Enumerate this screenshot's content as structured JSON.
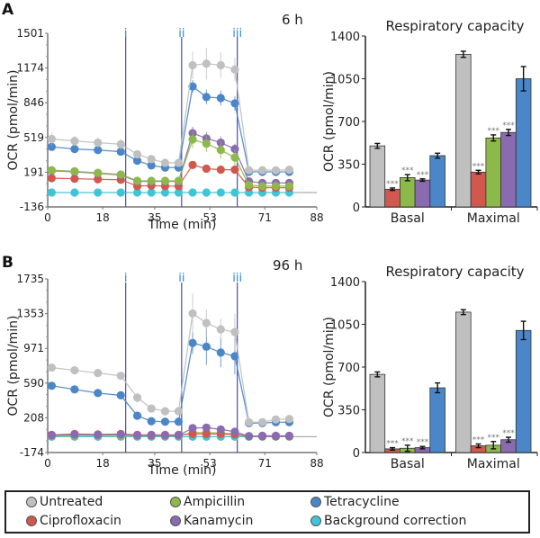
{
  "chart_data": [
    {
      "type": "line",
      "panel": "A",
      "timepoint_label": "6 h",
      "xlabel": "Time (min)",
      "ylabel": "OCR (pmol/min)",
      "xlim": [
        0,
        88
      ],
      "ylim": [
        -136,
        1501
      ],
      "xticks": [
        "0",
        "18",
        "35",
        "53",
        "71",
        "88"
      ],
      "xtick_values": [
        0,
        18,
        35,
        53,
        71,
        88
      ],
      "yticks": [
        "1501",
        "1174",
        "846",
        "519",
        "191",
        "-136"
      ],
      "ytick_values": [
        1501,
        1174,
        846,
        519,
        191,
        -136
      ],
      "injections": [
        {
          "label": "i",
          "x": 25.5
        },
        {
          "label": "ii",
          "x": 43.8
        },
        {
          "label": "iii",
          "x": 62.0
        }
      ],
      "x": [
        1.3,
        8.8,
        16.4,
        23.9,
        29.3,
        33.9,
        38.4,
        42.8,
        47.4,
        51.9,
        56.6,
        61.2,
        65.8,
        70.2,
        74.6,
        79.0
      ],
      "series": [
        {
          "name": "Untreated",
          "color": "#c0c0c0",
          "values": [
            505,
            485,
            470,
            455,
            360,
            315,
            280,
            280,
            1200,
            1215,
            1200,
            1160,
            210,
            210,
            210,
            215
          ],
          "err": [
            60,
            50,
            50,
            50,
            40,
            40,
            30,
            30,
            130,
            150,
            120,
            110,
            30,
            30,
            30,
            30
          ]
        },
        {
          "name": "Tetracycline",
          "color": "#4a86c8",
          "values": [
            430,
            410,
            400,
            385,
            300,
            255,
            235,
            235,
            1000,
            900,
            890,
            840,
            195,
            195,
            195,
            195
          ],
          "err": [
            30,
            30,
            30,
            30,
            30,
            30,
            30,
            30,
            60,
            70,
            70,
            70,
            20,
            20,
            20,
            20
          ]
        },
        {
          "name": "Ampicillin",
          "color": "#8db84a",
          "values": [
            210,
            200,
            185,
            170,
            110,
            110,
            110,
            110,
            500,
            460,
            400,
            330,
            70,
            60,
            60,
            60
          ],
          "err": [
            20,
            20,
            20,
            20,
            20,
            20,
            20,
            20,
            80,
            80,
            80,
            80,
            20,
            20,
            20,
            20
          ]
        },
        {
          "name": "Kanamycin",
          "color": "#8b6bb0",
          "values": [
            205,
            195,
            180,
            165,
            105,
            105,
            105,
            105,
            560,
            510,
            470,
            410,
            105,
            90,
            90,
            90
          ],
          "err": [
            20,
            20,
            20,
            20,
            20,
            20,
            20,
            20,
            60,
            60,
            60,
            50,
            20,
            20,
            20,
            20
          ]
        },
        {
          "name": "Ciprofloxacin",
          "color": "#d0584e",
          "values": [
            135,
            130,
            125,
            120,
            60,
            65,
            60,
            60,
            260,
            225,
            215,
            215,
            50,
            45,
            45,
            45
          ],
          "err": [
            15,
            15,
            15,
            15,
            15,
            15,
            15,
            15,
            20,
            20,
            20,
            20,
            10,
            10,
            10,
            10
          ]
        },
        {
          "name": "Background correction",
          "color": "#3ec6d6",
          "values": [
            0,
            0,
            0,
            0,
            0,
            0,
            0,
            0,
            0,
            0,
            0,
            0,
            0,
            0,
            0,
            0
          ],
          "err": [
            0,
            0,
            0,
            0,
            0,
            0,
            0,
            0,
            0,
            0,
            0,
            0,
            0,
            0,
            0,
            0
          ]
        }
      ]
    },
    {
      "type": "bar",
      "panel": "A",
      "title": "Respiratory capacity",
      "ylabel": "OCR (pmol/min)",
      "ylim": [
        0,
        1400
      ],
      "yticks": [
        "0",
        "350",
        "700",
        "1050",
        "1400"
      ],
      "ytick_values": [
        0,
        350,
        700,
        1050,
        1400
      ],
      "categories": [
        "Basal",
        "Maximal"
      ],
      "series": [
        {
          "name": "Untreated",
          "color": "#c0c0c0",
          "values": [
            500,
            1250
          ],
          "err": [
            20,
            25
          ],
          "sig": [
            "",
            ""
          ]
        },
        {
          "name": "Ciprofloxacin",
          "color": "#d0584e",
          "values": [
            145,
            285
          ],
          "err": [
            10,
            15
          ],
          "sig": [
            "***",
            "***"
          ]
        },
        {
          "name": "Ampicillin",
          "color": "#8db84a",
          "values": [
            240,
            565
          ],
          "err": [
            25,
            25
          ],
          "sig": [
            "***",
            "***"
          ]
        },
        {
          "name": "Kanamycin",
          "color": "#8b6bb0",
          "values": [
            220,
            610
          ],
          "err": [
            10,
            25
          ],
          "sig": [
            "***",
            "***"
          ]
        },
        {
          "name": "Tetracycline",
          "color": "#4a86c8",
          "values": [
            420,
            1050
          ],
          "err": [
            20,
            100
          ],
          "sig": [
            "",
            ""
          ]
        }
      ]
    },
    {
      "type": "line",
      "panel": "B",
      "timepoint_label": "96 h",
      "xlabel": "Time (min)",
      "ylabel": "OCR (pmol/min)",
      "xlim": [
        0,
        88
      ],
      "ylim": [
        -174,
        1735
      ],
      "xticks": [
        "0",
        "18",
        "35",
        "53",
        "71",
        "88"
      ],
      "xtick_values": [
        0,
        18,
        35,
        53,
        71,
        88
      ],
      "yticks": [
        "1735",
        "1353",
        "971",
        "590",
        "208",
        "-174"
      ],
      "ytick_values": [
        1735,
        1353,
        971,
        590,
        208,
        -174
      ],
      "injections": [
        {
          "label": "i",
          "x": 25.5
        },
        {
          "label": "ii",
          "x": 43.8
        },
        {
          "label": "iii",
          "x": 62.0
        }
      ],
      "x": [
        1.3,
        8.8,
        16.4,
        23.9,
        29.3,
        33.9,
        38.4,
        42.8,
        47.4,
        51.9,
        56.6,
        61.2,
        65.8,
        70.2,
        74.6,
        79.0
      ],
      "series": [
        {
          "name": "Untreated",
          "color": "#c0c0c0",
          "values": [
            760,
            730,
            700,
            670,
            430,
            310,
            280,
            280,
            1355,
            1250,
            1180,
            1150,
            160,
            160,
            190,
            195
          ],
          "err": [
            20,
            20,
            20,
            20,
            50,
            20,
            20,
            20,
            220,
            150,
            120,
            200,
            20,
            20,
            20,
            20
          ]
        },
        {
          "name": "Tetracycline",
          "color": "#4a86c8",
          "values": [
            560,
            520,
            480,
            455,
            230,
            170,
            165,
            165,
            1030,
            990,
            925,
            885,
            150,
            150,
            160,
            160
          ],
          "err": [
            20,
            20,
            20,
            20,
            20,
            20,
            20,
            20,
            120,
            200,
            160,
            200,
            20,
            20,
            20,
            20
          ]
        },
        {
          "name": "Kanamycin",
          "color": "#8b6bb0",
          "values": [
            15,
            25,
            20,
            25,
            15,
            15,
            15,
            15,
            95,
            100,
            80,
            55,
            5,
            10,
            10,
            10
          ],
          "err": [
            10,
            10,
            10,
            10,
            10,
            10,
            10,
            10,
            15,
            15,
            15,
            15,
            5,
            5,
            5,
            5
          ]
        },
        {
          "name": "Ciprofloxacin",
          "color": "#d0584e",
          "values": [
            20,
            30,
            25,
            30,
            20,
            20,
            20,
            20,
            30,
            30,
            30,
            25,
            5,
            5,
            5,
            5
          ],
          "err": [
            10,
            10,
            10,
            10,
            10,
            10,
            10,
            10,
            10,
            10,
            10,
            10,
            5,
            5,
            5,
            5
          ]
        },
        {
          "name": "Ampicillin",
          "color": "#8db84a",
          "values": [
            10,
            15,
            15,
            15,
            10,
            10,
            10,
            10,
            45,
            45,
            40,
            30,
            5,
            5,
            5,
            5
          ],
          "err": [
            10,
            10,
            10,
            10,
            10,
            10,
            10,
            10,
            10,
            10,
            10,
            10,
            5,
            5,
            5,
            5
          ]
        },
        {
          "name": "Background correction",
          "color": "#3ec6d6",
          "values": [
            0,
            0,
            0,
            0,
            0,
            0,
            0,
            0,
            0,
            0,
            0,
            0,
            0,
            0,
            0,
            0
          ],
          "err": [
            0,
            0,
            0,
            0,
            0,
            0,
            0,
            0,
            0,
            0,
            0,
            0,
            0,
            0,
            0,
            0
          ]
        }
      ]
    },
    {
      "type": "bar",
      "panel": "B",
      "title": "Respiratory capacity",
      "ylabel": "OCR (pmol/min)",
      "ylim": [
        0,
        1400
      ],
      "yticks": [
        "0",
        "350",
        "700",
        "1050",
        "1400"
      ],
      "ytick_values": [
        0,
        350,
        700,
        1050,
        1400
      ],
      "categories": [
        "Basal",
        "Maximal"
      ],
      "series": [
        {
          "name": "Untreated",
          "color": "#c0c0c0",
          "values": [
            640,
            1150
          ],
          "err": [
            20,
            20
          ],
          "sig": [
            "",
            ""
          ]
        },
        {
          "name": "Ciprofloxacin",
          "color": "#d0584e",
          "values": [
            30,
            55
          ],
          "err": [
            10,
            15
          ],
          "sig": [
            "***",
            "***"
          ]
        },
        {
          "name": "Ampicillin",
          "color": "#8db84a",
          "values": [
            35,
            60
          ],
          "err": [
            25,
            30
          ],
          "sig": [
            "***",
            "***"
          ]
        },
        {
          "name": "Kanamycin",
          "color": "#8b6bb0",
          "values": [
            40,
            105
          ],
          "err": [
            10,
            20
          ],
          "sig": [
            "***",
            "***"
          ]
        },
        {
          "name": "Tetracycline",
          "color": "#4a86c8",
          "values": [
            530,
            1000
          ],
          "err": [
            40,
            75
          ],
          "sig": [
            "",
            ""
          ]
        }
      ]
    }
  ],
  "legend": [
    {
      "label": "Untreated",
      "color": "#c0c0c0"
    },
    {
      "label": "Ampicillin",
      "color": "#8db84a"
    },
    {
      "label": "Tetracycline",
      "color": "#4a86c8"
    },
    {
      "label": "Ciprofloxacin",
      "color": "#d0584e"
    },
    {
      "label": "Kanamycin",
      "color": "#8b6bb0"
    },
    {
      "label": "Background correction",
      "color": "#3ec6d6"
    }
  ]
}
